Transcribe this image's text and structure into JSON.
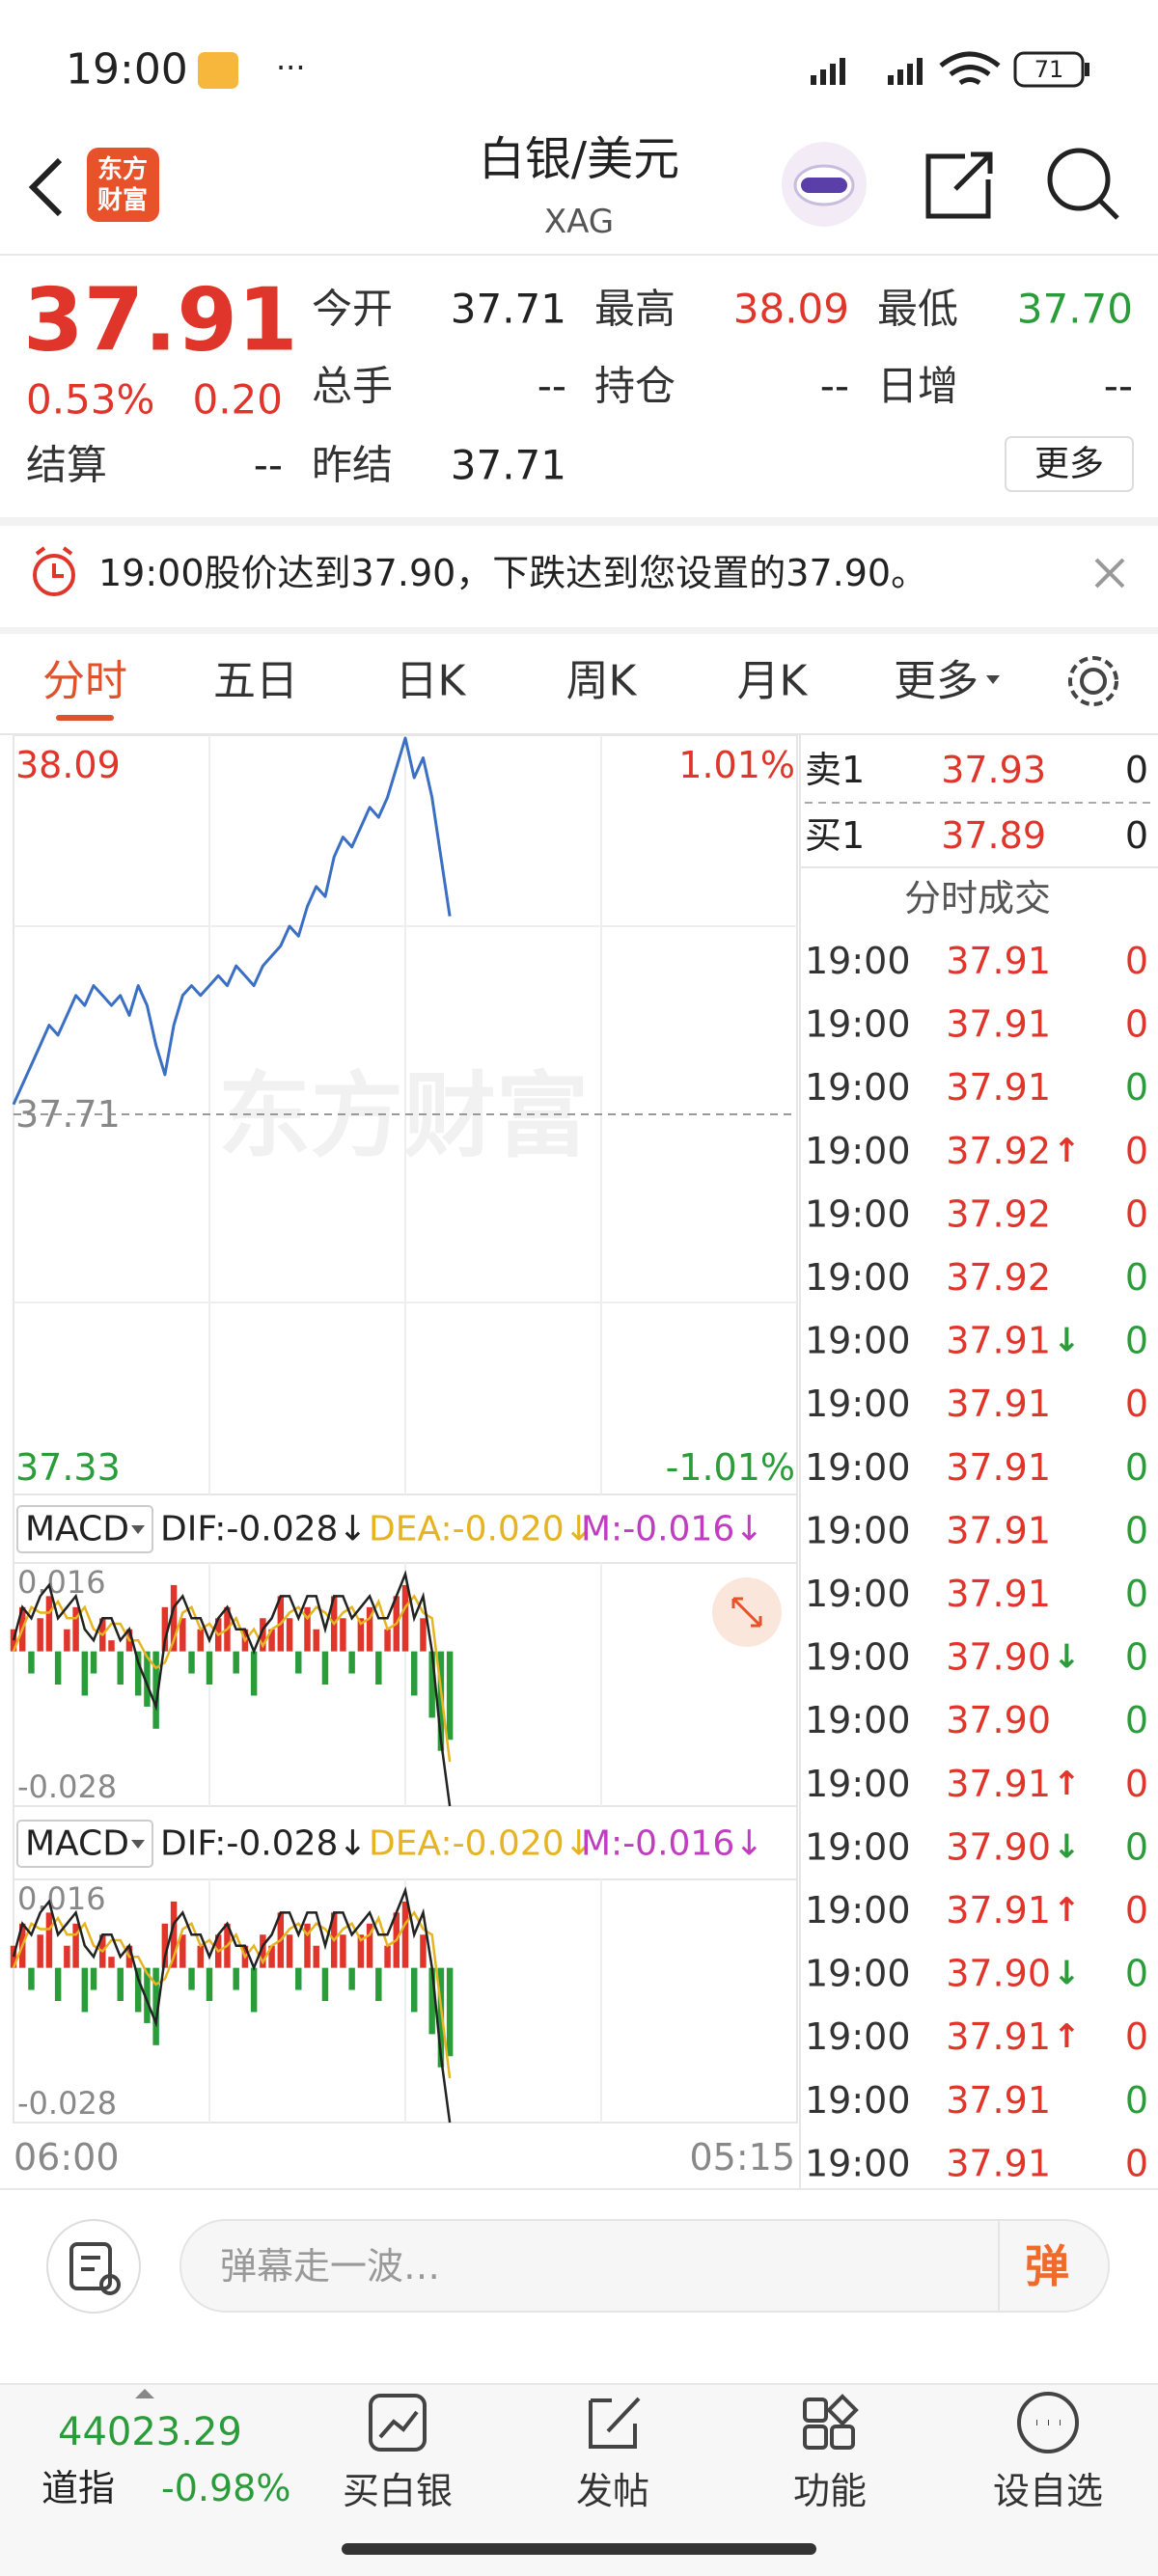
{
  "status_bar": {
    "time": "19:00",
    "battery": "71"
  },
  "header": {
    "logo_lines": [
      "东方",
      "财富"
    ],
    "title": "白银/美元",
    "subtitle": "XAG"
  },
  "quote": {
    "price": "37.91",
    "change_pct": "0.53%",
    "change": "0.20",
    "color": "#e0352b",
    "fields": [
      {
        "label": "今开",
        "value": "37.71",
        "color": "#222222"
      },
      {
        "label": "最高",
        "value": "38.09",
        "color": "#e0352b"
      },
      {
        "label": "最低",
        "value": "37.70",
        "color": "#2a9d3a"
      },
      {
        "label": "总手",
        "value": "--",
        "color": "#222222"
      },
      {
        "label": "持仓",
        "value": "--",
        "color": "#222222"
      },
      {
        "label": "日增",
        "value": "--",
        "color": "#222222"
      },
      {
        "label": "结算",
        "value": "--",
        "color": "#222222"
      },
      {
        "label": "昨结",
        "value": "37.71",
        "color": "#222222"
      }
    ],
    "more": "更多"
  },
  "alert": {
    "text": "19:00股价达到37.90，下跌达到您设置的37.90。"
  },
  "tabs": {
    "items": [
      "分时",
      "五日",
      "日K",
      "周K",
      "月K",
      "更多"
    ],
    "active": 0
  },
  "chart_data": {
    "type": "line",
    "x_labels": [
      "06:00",
      "05:15"
    ],
    "watermark": "东方财富",
    "color": "#3a6fc4",
    "values": [
      37.72,
      37.74,
      37.76,
      37.78,
      37.8,
      37.79,
      37.81,
      37.83,
      37.82,
      37.84,
      37.83,
      37.82,
      37.83,
      37.81,
      37.84,
      37.82,
      37.78,
      37.75,
      37.8,
      37.83,
      37.84,
      37.83,
      37.84,
      37.85,
      37.84,
      37.86,
      37.85,
      37.84,
      37.86,
      37.87,
      37.88,
      37.9,
      37.89,
      37.92,
      37.94,
      37.93,
      37.97,
      37.99,
      37.98,
      38.0,
      38.02,
      38.01,
      38.03,
      38.06,
      38.09,
      38.05,
      38.07,
      38.03,
      37.97,
      37.91,
      null,
      null,
      null,
      null,
      null,
      null,
      null,
      null,
      null,
      null,
      null,
      null,
      null,
      null,
      null,
      null,
      null,
      null,
      null,
      null,
      null,
      null,
      null,
      null,
      null,
      null,
      null,
      null,
      null,
      null,
      null,
      null,
      null,
      null,
      null,
      null,
      null,
      null,
      null
    ],
    "ylim": [
      37.33,
      38.09
    ],
    "yticks": [
      38.09,
      37.71,
      37.33
    ],
    "y2lim": [
      -1.01,
      1.01
    ],
    "y2ticks": [
      {
        "value": 1.01,
        "label": "1.01%"
      },
      {
        "value": -1.01,
        "label": "-1.01%"
      }
    ],
    "up_color": "#e0352b",
    "down_color": "#2a9d3a",
    "macd": {
      "title": "MACD",
      "dif_label": "DIF:-0.028↓",
      "dea_label": "DEA:-0.020↓",
      "m_label": "M:-0.016↓",
      "dif_color": "#222222",
      "dea_color": "#e6b422",
      "m_color": "#c03cc0",
      "ylim": [
        -0.028,
        0.016
      ],
      "yticks": [
        0.016,
        -0.028
      ],
      "m": [
        0.004,
        0.008,
        -0.004,
        0.006,
        0.01,
        -0.006,
        0.004,
        0.008,
        -0.008,
        -0.004,
        0.006,
        0.002,
        -0.006,
        0.004,
        -0.008,
        -0.01,
        -0.014,
        0.008,
        0.012,
        0.006,
        -0.004,
        0.004,
        -0.006,
        0.006,
        0.008,
        -0.004,
        0.004,
        -0.008,
        0.006,
        0.004,
        0.01,
        0.006,
        -0.004,
        0.008,
        0.004,
        -0.006,
        0.01,
        0.006,
        -0.004,
        0.006,
        0.008,
        -0.006,
        0.004,
        0.01,
        0.012,
        -0.008,
        0.006,
        -0.012,
        -0.018,
        -0.016
      ],
      "dif": [
        0.002,
        0.008,
        0.006,
        0.01,
        0.012,
        0.006,
        0.008,
        0.01,
        0.004,
        0.002,
        0.006,
        0.006,
        0.002,
        0.004,
        -0.002,
        -0.006,
        -0.01,
        0.002,
        0.008,
        0.01,
        0.006,
        0.006,
        0.002,
        0.006,
        0.008,
        0.004,
        0.004,
        0.0,
        0.004,
        0.006,
        0.01,
        0.01,
        0.006,
        0.01,
        0.01,
        0.004,
        0.01,
        0.01,
        0.006,
        0.008,
        0.01,
        0.006,
        0.006,
        0.01,
        0.014,
        0.006,
        0.01,
        0.0,
        -0.016,
        -0.028
      ],
      "dea": [
        0.0,
        0.004,
        0.008,
        0.007,
        0.007,
        0.009,
        0.006,
        0.006,
        0.008,
        0.004,
        0.003,
        0.005,
        0.005,
        0.002,
        0.002,
        -0.001,
        -0.003,
        -0.002,
        0.002,
        0.007,
        0.008,
        0.004,
        0.005,
        0.003,
        0.004,
        0.006,
        0.002,
        0.004,
        0.001,
        0.004,
        0.005,
        0.007,
        0.008,
        0.006,
        0.008,
        0.007,
        0.005,
        0.007,
        0.008,
        0.005,
        0.006,
        0.009,
        0.004,
        0.005,
        0.008,
        0.01,
        0.007,
        0.006,
        -0.007,
        -0.02
      ]
    }
  },
  "order_book": {
    "price_color": "#e0352b",
    "rows": [
      {
        "label": "卖1",
        "price": "37.93",
        "volume": "0"
      },
      {
        "label": "买1",
        "price": "37.89",
        "volume": "0"
      }
    ]
  },
  "trades": {
    "title": "分时成交",
    "price_color": "#e0352b",
    "up_color": "#e0352b",
    "down_color": "#2a9d3a",
    "rows": [
      {
        "time": "19:00",
        "price": "37.91",
        "volume": "0",
        "volume_side": "up"
      },
      {
        "time": "19:00",
        "price": "37.91",
        "volume": "0",
        "volume_side": "up"
      },
      {
        "time": "19:00",
        "price": "37.91",
        "volume": "0",
        "volume_side": "down"
      },
      {
        "time": "19:00",
        "price": "37.92",
        "arrow": "↑",
        "arrow_side": "up",
        "volume": "0",
        "volume_side": "up"
      },
      {
        "time": "19:00",
        "price": "37.92",
        "volume": "0",
        "volume_side": "up"
      },
      {
        "time": "19:00",
        "price": "37.92",
        "volume": "0",
        "volume_side": "down"
      },
      {
        "time": "19:00",
        "price": "37.91",
        "arrow": "↓",
        "arrow_side": "down",
        "volume": "0",
        "volume_side": "down"
      },
      {
        "time": "19:00",
        "price": "37.91",
        "volume": "0",
        "volume_side": "up"
      },
      {
        "time": "19:00",
        "price": "37.91",
        "volume": "0",
        "volume_side": "down"
      },
      {
        "time": "19:00",
        "price": "37.91",
        "volume": "0",
        "volume_side": "down"
      },
      {
        "time": "19:00",
        "price": "37.91",
        "volume": "0",
        "volume_side": "down"
      },
      {
        "time": "19:00",
        "price": "37.90",
        "arrow": "↓",
        "arrow_side": "down",
        "volume": "0",
        "volume_side": "down"
      },
      {
        "time": "19:00",
        "price": "37.90",
        "volume": "0",
        "volume_side": "down"
      },
      {
        "time": "19:00",
        "price": "37.91",
        "arrow": "↑",
        "arrow_side": "up",
        "volume": "0",
        "volume_side": "up"
      },
      {
        "time": "19:00",
        "price": "37.90",
        "arrow": "↓",
        "arrow_side": "down",
        "volume": "0",
        "volume_side": "down"
      },
      {
        "time": "19:00",
        "price": "37.91",
        "arrow": "↑",
        "arrow_side": "up",
        "volume": "0",
        "volume_side": "up"
      },
      {
        "time": "19:00",
        "price": "37.90",
        "arrow": "↓",
        "arrow_side": "down",
        "volume": "0",
        "volume_side": "down"
      },
      {
        "time": "19:00",
        "price": "37.91",
        "arrow": "↑",
        "arrow_side": "up",
        "volume": "0",
        "volume_side": "up"
      },
      {
        "time": "19:00",
        "price": "37.91",
        "volume": "0",
        "volume_side": "down"
      },
      {
        "time": "19:00",
        "price": "37.91",
        "volume": "0",
        "volume_side": "up"
      }
    ]
  },
  "comment_bar": {
    "placeholder": "弹幕走一波…",
    "button": "弹"
  },
  "bottom_nav": {
    "index_value": "44023.29",
    "index_name": "道指",
    "index_change": "-0.98%",
    "items": [
      "买白银",
      "发帖",
      "功能",
      "设自选"
    ]
  }
}
